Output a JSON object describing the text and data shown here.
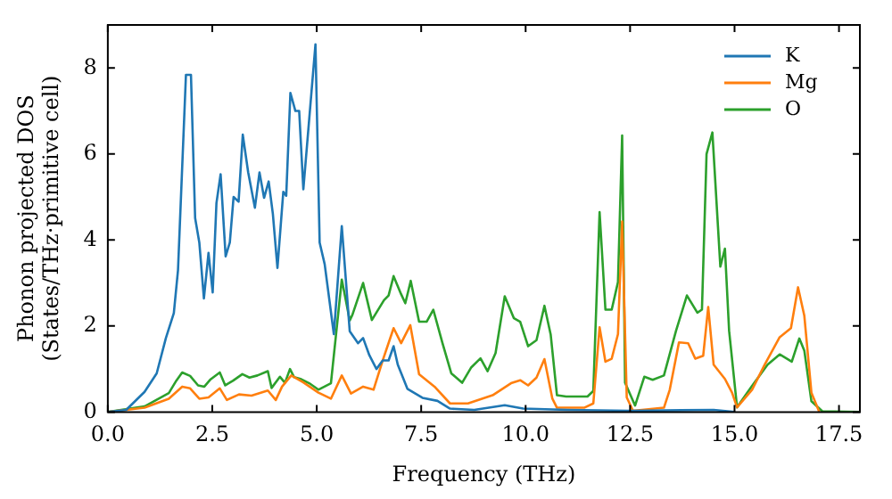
{
  "chart_data": {
    "type": "line",
    "xlabel": "Frequency (THz)",
    "ylabel": "Phonon projected DOS\n(States/THz·primitive cell)",
    "xlim": [
      0,
      18
    ],
    "ylim": [
      0,
      9
    ],
    "xticks": [
      {
        "value": 0,
        "label": "0.0"
      },
      {
        "value": 2.5,
        "label": "2.5"
      },
      {
        "value": 5,
        "label": "5.0"
      },
      {
        "value": 7.5,
        "label": "7.5"
      },
      {
        "value": 10,
        "label": "10.0"
      },
      {
        "value": 12.5,
        "label": "12.5"
      },
      {
        "value": 15,
        "label": "15.0"
      },
      {
        "value": 17.5,
        "label": "17.5"
      }
    ],
    "yticks": [
      0,
      2,
      4,
      6,
      8
    ],
    "grid": false,
    "legend": "top right",
    "marker": "none",
    "line_style": "solid",
    "series": [
      {
        "name": "K",
        "color": "#1f77b4",
        "x": [
          0,
          0.44,
          0.88,
          1.17,
          1.39,
          1.58,
          1.68,
          1.87,
          1.99,
          2.09,
          2.19,
          2.3,
          2.41,
          2.51,
          2.6,
          2.7,
          2.82,
          2.92,
          3.01,
          3.13,
          3.23,
          3.36,
          3.52,
          3.63,
          3.74,
          3.85,
          3.95,
          4.06,
          4.2,
          4.27,
          4.37,
          4.49,
          4.58,
          4.68,
          4.97,
          5.07,
          5.19,
          5.41,
          5.6,
          5.79,
          5.99,
          6.11,
          6.26,
          6.43,
          6.58,
          6.72,
          6.84,
          6.94,
          7.17,
          7.53,
          7.89,
          8.19,
          8.77,
          9.5,
          9.94,
          11,
          12.5,
          14.5,
          15
        ],
        "values": [
          0,
          0.05,
          0.47,
          0.9,
          1.72,
          2.3,
          3.3,
          7.84,
          7.84,
          4.51,
          3.94,
          2.64,
          3.7,
          2.78,
          4.86,
          5.53,
          3.62,
          3.94,
          5.0,
          4.89,
          6.45,
          5.57,
          4.75,
          5.57,
          4.98,
          5.36,
          4.61,
          3.35,
          5.12,
          5.03,
          7.42,
          7.0,
          7.0,
          5.18,
          8.55,
          3.94,
          3.44,
          1.81,
          4.32,
          1.88,
          1.6,
          1.72,
          1.32,
          1.0,
          1.2,
          1.2,
          1.53,
          1.1,
          0.54,
          0.33,
          0.26,
          0.08,
          0.05,
          0.16,
          0.08,
          0.05,
          0.03,
          0.05,
          0
        ]
      },
      {
        "name": "Mg",
        "color": "#ff7f0e",
        "x": [
          0,
          0.88,
          1.46,
          1.78,
          1.97,
          2.19,
          2.41,
          2.68,
          2.85,
          3.14,
          3.44,
          3.83,
          4.02,
          4.17,
          4.39,
          4.68,
          5.04,
          5.34,
          5.6,
          5.82,
          6.11,
          6.36,
          6.58,
          6.84,
          7.02,
          7.24,
          7.45,
          7.82,
          8.19,
          8.62,
          9.21,
          9.65,
          9.87,
          10.06,
          10.26,
          10.45,
          10.64,
          10.75,
          11.4,
          11.62,
          11.77,
          11.91,
          12.06,
          12.21,
          12.31,
          12.42,
          12.57,
          13.31,
          13.45,
          13.67,
          13.89,
          14.06,
          14.25,
          14.37,
          14.5,
          14.77,
          14.94,
          15.06,
          15.42,
          15.72,
          16.08,
          16.35,
          16.52,
          16.67,
          16.84,
          17.03
        ],
        "values": [
          0,
          0.1,
          0.31,
          0.59,
          0.55,
          0.31,
          0.34,
          0.55,
          0.28,
          0.41,
          0.38,
          0.5,
          0.28,
          0.59,
          0.85,
          0.69,
          0.45,
          0.31,
          0.85,
          0.43,
          0.59,
          0.52,
          1.2,
          1.95,
          1.6,
          2.02,
          0.88,
          0.59,
          0.2,
          0.2,
          0.39,
          0.67,
          0.74,
          0.62,
          0.8,
          1.23,
          0.31,
          0.1,
          0.1,
          0.2,
          1.97,
          1.17,
          1.24,
          1.81,
          4.43,
          0.34,
          0.03,
          0.1,
          0.52,
          1.62,
          1.6,
          1.24,
          1.31,
          2.44,
          1.1,
          0.77,
          0.45,
          0.11,
          0.52,
          1.1,
          1.74,
          1.95,
          2.9,
          2.24,
          0.45,
          0
        ]
      },
      {
        "name": "O",
        "color": "#2ca02c",
        "x": [
          0,
          0.88,
          1.46,
          1.64,
          1.78,
          1.97,
          2.16,
          2.31,
          2.46,
          2.68,
          2.81,
          3.0,
          3.22,
          3.39,
          3.58,
          3.83,
          3.92,
          4.12,
          4.24,
          4.36,
          4.46,
          4.61,
          4.82,
          5.04,
          5.34,
          5.6,
          5.79,
          5.85,
          6.11,
          6.32,
          6.61,
          6.72,
          6.84,
          7.02,
          7.12,
          7.25,
          7.45,
          7.63,
          7.79,
          8.01,
          8.22,
          8.48,
          8.7,
          8.92,
          9.09,
          9.28,
          9.5,
          9.72,
          9.87,
          10.06,
          10.26,
          10.45,
          10.6,
          10.75,
          10.97,
          11.48,
          11.62,
          11.77,
          11.91,
          12.06,
          12.21,
          12.31,
          12.38,
          12.62,
          12.84,
          13.04,
          13.31,
          13.6,
          13.86,
          14.11,
          14.22,
          14.33,
          14.47,
          14.66,
          14.77,
          14.87,
          15.06,
          15.42,
          15.79,
          16.08,
          16.37,
          16.55,
          16.67,
          16.84,
          17.1,
          17.98
        ],
        "values": [
          0,
          0.13,
          0.44,
          0.73,
          0.92,
          0.84,
          0.62,
          0.59,
          0.76,
          0.92,
          0.62,
          0.73,
          0.88,
          0.8,
          0.85,
          0.95,
          0.56,
          0.82,
          0.68,
          1.0,
          0.81,
          0.77,
          0.67,
          0.52,
          0.67,
          3.08,
          2.13,
          2.25,
          3.0,
          2.14,
          2.6,
          2.71,
          3.16,
          2.74,
          2.53,
          3.05,
          2.1,
          2.1,
          2.38,
          1.6,
          0.9,
          0.68,
          1.04,
          1.25,
          0.95,
          1.37,
          2.69,
          2.18,
          2.1,
          1.53,
          1.67,
          2.47,
          1.8,
          0.39,
          0.36,
          0.36,
          0.49,
          4.65,
          2.38,
          2.38,
          3.02,
          6.43,
          0.68,
          0.15,
          0.82,
          0.75,
          0.85,
          1.89,
          2.71,
          2.31,
          2.38,
          6.0,
          6.5,
          3.38,
          3.8,
          1.89,
          0.11,
          0.61,
          1.1,
          1.34,
          1.17,
          1.71,
          1.43,
          0.25,
          0.02,
          0
        ]
      }
    ]
  }
}
